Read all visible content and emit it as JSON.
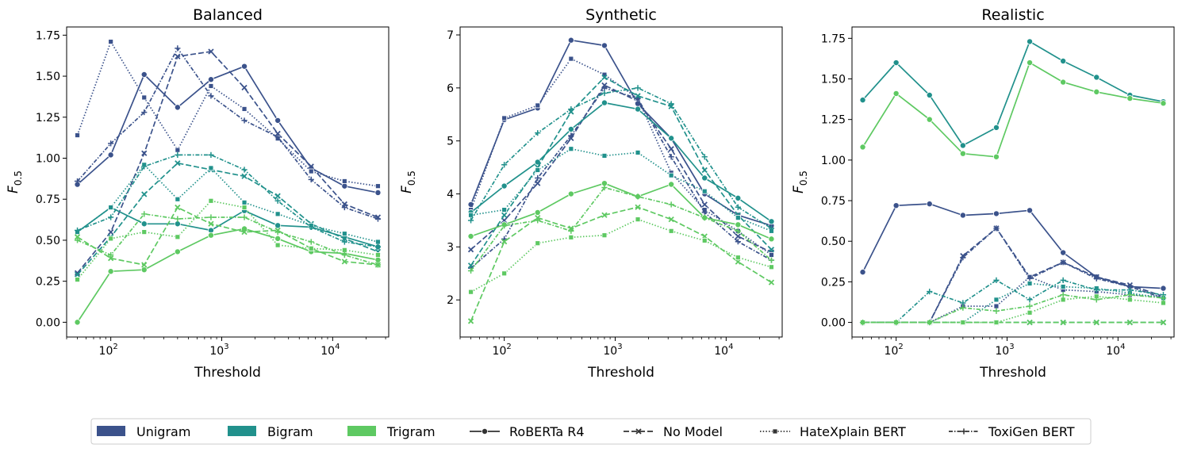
{
  "colors": {
    "Unigram": "#3b528b",
    "Bigram": "#21918c",
    "Trigram": "#5ec962"
  },
  "legend": {
    "ngrams": [
      "Unigram",
      "Bigram",
      "Trigram"
    ],
    "models": [
      "RoBERTa R4",
      "No Model",
      "HateXplain BERT",
      "ToxiGen BERT"
    ]
  },
  "chart_data": [
    {
      "type": "line",
      "title": "Balanced",
      "xlabel": "Threshold",
      "ylabel": "F",
      "ylabel_sub": "0.5",
      "xscale": "log",
      "xlim": [
        40,
        32000
      ],
      "ylim": [
        -0.09,
        1.8
      ],
      "yticks": [
        0.0,
        0.25,
        0.5,
        0.75,
        1.0,
        1.25,
        1.5,
        1.75
      ],
      "ytick_labels": [
        "0.00",
        "0.25",
        "0.50",
        "0.75",
        "1.00",
        "1.25",
        "1.50",
        "1.75"
      ],
      "x": [
        50,
        100,
        200,
        400,
        800,
        1600,
        3200,
        6400,
        12800,
        25600
      ],
      "series": [
        {
          "ngram": "Unigram",
          "model": "RoBERTa R4",
          "values": [
            0.84,
            1.02,
            1.51,
            1.31,
            1.48,
            1.56,
            1.23,
            0.94,
            0.83,
            0.79
          ]
        },
        {
          "ngram": "Unigram",
          "model": "No Model",
          "values": [
            0.3,
            0.55,
            1.03,
            1.62,
            1.65,
            1.43,
            1.15,
            0.95,
            0.72,
            0.64
          ]
        },
        {
          "ngram": "Unigram",
          "model": "HateXplain BERT",
          "values": [
            1.14,
            1.71,
            1.37,
            1.05,
            1.44,
            1.3,
            1.12,
            0.92,
            0.86,
            0.83
          ]
        },
        {
          "ngram": "Unigram",
          "model": "ToxiGen BERT",
          "values": [
            0.86,
            1.09,
            1.28,
            1.67,
            1.38,
            1.23,
            1.13,
            0.87,
            0.7,
            0.63
          ]
        },
        {
          "ngram": "Bigram",
          "model": "RoBERTa R4",
          "values": [
            0.55,
            0.7,
            0.6,
            0.6,
            0.56,
            0.68,
            0.59,
            0.58,
            0.52,
            0.46
          ]
        },
        {
          "ngram": "Bigram",
          "model": "No Model",
          "values": [
            0.29,
            0.52,
            0.78,
            0.97,
            0.93,
            0.89,
            0.77,
            0.6,
            0.51,
            0.43
          ]
        },
        {
          "ngram": "Bigram",
          "model": "HateXplain BERT",
          "values": [
            0.55,
            0.7,
            0.96,
            0.75,
            0.94,
            0.73,
            0.66,
            0.59,
            0.54,
            0.49
          ]
        },
        {
          "ngram": "Bigram",
          "model": "ToxiGen BERT",
          "values": [
            0.56,
            0.64,
            0.95,
            1.02,
            1.02,
            0.93,
            0.74,
            0.58,
            0.49,
            0.46
          ]
        },
        {
          "ngram": "Trigram",
          "model": "RoBERTa R4",
          "values": [
            0.0,
            0.31,
            0.32,
            0.43,
            0.53,
            0.57,
            0.51,
            0.43,
            0.42,
            0.38
          ]
        },
        {
          "ngram": "Trigram",
          "model": "No Model",
          "values": [
            0.52,
            0.39,
            0.35,
            0.7,
            0.6,
            0.55,
            0.56,
            0.45,
            0.37,
            0.35
          ]
        },
        {
          "ngram": "Trigram",
          "model": "HateXplain BERT",
          "values": [
            0.26,
            0.51,
            0.55,
            0.52,
            0.74,
            0.7,
            0.47,
            0.45,
            0.44,
            0.41
          ]
        },
        {
          "ngram": "Trigram",
          "model": "ToxiGen BERT",
          "values": [
            0.5,
            0.41,
            0.66,
            0.63,
            0.64,
            0.64,
            0.55,
            0.49,
            0.41,
            0.35
          ]
        }
      ]
    },
    {
      "type": "line",
      "title": "Synthetic",
      "xlabel": "Threshold",
      "ylabel": "F",
      "ylabel_sub": "0.5",
      "xscale": "log",
      "xlim": [
        40,
        32000
      ],
      "ylim": [
        1.3,
        7.15
      ],
      "yticks": [
        2,
        3,
        4,
        5,
        6,
        7
      ],
      "ytick_labels": [
        "2",
        "3",
        "4",
        "5",
        "6",
        "7"
      ],
      "x": [
        50,
        100,
        200,
        400,
        800,
        1600,
        3200,
        6400,
        12800,
        25600
      ],
      "series": [
        {
          "ngram": "Unigram",
          "model": "RoBERTa R4",
          "values": [
            3.8,
            5.4,
            5.62,
            6.9,
            6.8,
            5.7,
            5.05,
            4.0,
            3.6,
            3.4
          ]
        },
        {
          "ngram": "Unigram",
          "model": "No Model",
          "values": [
            2.95,
            3.5,
            4.2,
            5.05,
            6.05,
            5.75,
            4.85,
            3.8,
            3.2,
            2.9
          ]
        },
        {
          "ngram": "Unigram",
          "model": "HateXplain BERT",
          "values": [
            3.7,
            5.43,
            5.67,
            6.55,
            6.25,
            5.8,
            4.4,
            3.7,
            3.3,
            2.85
          ]
        },
        {
          "ngram": "Unigram",
          "model": "ToxiGen BERT",
          "values": [
            2.6,
            3.15,
            4.3,
            5.1,
            6.0,
            5.8,
            4.7,
            3.65,
            3.1,
            2.75
          ]
        },
        {
          "ngram": "Bigram",
          "model": "RoBERTa R4",
          "values": [
            3.65,
            4.15,
            4.6,
            5.22,
            5.72,
            5.6,
            5.05,
            4.3,
            3.92,
            3.48
          ]
        },
        {
          "ngram": "Bigram",
          "model": "No Model",
          "values": [
            2.65,
            3.6,
            4.5,
            5.55,
            6.2,
            5.85,
            5.65,
            4.45,
            3.6,
            2.95
          ]
        },
        {
          "ngram": "Bigram",
          "model": "HateXplain BERT",
          "values": [
            3.6,
            3.7,
            4.45,
            4.85,
            4.72,
            4.78,
            4.35,
            4.05,
            3.55,
            3.3
          ]
        },
        {
          "ngram": "Bigram",
          "model": "ToxiGen BERT",
          "values": [
            3.5,
            4.55,
            5.15,
            5.6,
            5.9,
            6.0,
            5.7,
            4.7,
            3.75,
            3.35
          ]
        },
        {
          "ngram": "Trigram",
          "model": "RoBERTa R4",
          "values": [
            3.2,
            3.42,
            3.65,
            4.0,
            4.2,
            3.95,
            4.18,
            3.55,
            3.42,
            3.15
          ]
        },
        {
          "ngram": "Trigram",
          "model": "No Model",
          "values": [
            1.6,
            3.1,
            3.55,
            3.35,
            3.6,
            3.75,
            3.52,
            3.2,
            2.72,
            2.33
          ]
        },
        {
          "ngram": "Trigram",
          "model": "HateXplain BERT",
          "values": [
            2.15,
            2.5,
            3.07,
            3.18,
            3.22,
            3.52,
            3.3,
            3.12,
            2.8,
            2.62
          ]
        },
        {
          "ngram": "Trigram",
          "model": "ToxiGen BERT",
          "values": [
            2.55,
            3.4,
            3.5,
            3.3,
            4.12,
            3.95,
            3.8,
            3.55,
            3.3,
            2.75
          ]
        }
      ]
    },
    {
      "type": "line",
      "title": "Realistic",
      "xlabel": "Threshold",
      "ylabel": "F",
      "ylabel_sub": "0.5",
      "xscale": "log",
      "xlim": [
        40,
        32000
      ],
      "ylim": [
        -0.09,
        1.82
      ],
      "yticks": [
        0.0,
        0.25,
        0.5,
        0.75,
        1.0,
        1.25,
        1.5,
        1.75
      ],
      "ytick_labels": [
        "0.00",
        "0.25",
        "0.50",
        "0.75",
        "1.00",
        "1.25",
        "1.50",
        "1.75"
      ],
      "x": [
        50,
        100,
        200,
        400,
        800,
        1600,
        3200,
        6400,
        12800,
        25600
      ],
      "series": [
        {
          "ngram": "Unigram",
          "model": "RoBERTa R4",
          "values": [
            0.31,
            0.72,
            0.73,
            0.66,
            0.67,
            0.69,
            0.43,
            0.28,
            0.22,
            0.21
          ]
        },
        {
          "ngram": "Unigram",
          "model": "No Model",
          "values": [
            0.0,
            0.0,
            0.0,
            0.41,
            0.58,
            0.28,
            0.37,
            0.28,
            0.23,
            0.16
          ]
        },
        {
          "ngram": "Unigram",
          "model": "HateXplain BERT",
          "values": [
            0.0,
            0.0,
            0.0,
            0.1,
            0.1,
            0.28,
            0.2,
            0.19,
            0.17,
            0.16
          ]
        },
        {
          "ngram": "Unigram",
          "model": "ToxiGen BERT",
          "values": [
            0.0,
            0.0,
            0.0,
            0.4,
            0.58,
            0.27,
            0.37,
            0.27,
            0.22,
            0.15
          ]
        },
        {
          "ngram": "Bigram",
          "model": "RoBERTa R4",
          "values": [
            1.37,
            1.6,
            1.4,
            1.09,
            1.2,
            1.73,
            1.61,
            1.51,
            1.4,
            1.36
          ]
        },
        {
          "ngram": "Bigram",
          "model": "No Model",
          "values": [
            0.0,
            0.0,
            0.0,
            0.0,
            0.0,
            0.0,
            0.0,
            0.0,
            0.0,
            0.0
          ]
        },
        {
          "ngram": "Bigram",
          "model": "HateXplain BERT",
          "values": [
            0.0,
            0.0,
            0.0,
            0.0,
            0.14,
            0.24,
            0.22,
            0.21,
            0.18,
            0.15
          ]
        },
        {
          "ngram": "Bigram",
          "model": "ToxiGen BERT",
          "values": [
            0.0,
            0.0,
            0.19,
            0.12,
            0.26,
            0.14,
            0.26,
            0.2,
            0.2,
            0.17
          ]
        },
        {
          "ngram": "Trigram",
          "model": "RoBERTa R4",
          "values": [
            1.08,
            1.41,
            1.25,
            1.04,
            1.02,
            1.6,
            1.48,
            1.42,
            1.38,
            1.35
          ]
        },
        {
          "ngram": "Trigram",
          "model": "No Model",
          "values": [
            0.0,
            0.0,
            0.0,
            0.0,
            0.0,
            0.0,
            0.0,
            0.0,
            0.0,
            0.0
          ]
        },
        {
          "ngram": "Trigram",
          "model": "HateXplain BERT",
          "values": [
            0.0,
            0.0,
            0.0,
            0.0,
            0.0,
            0.06,
            0.14,
            0.16,
            0.14,
            0.12
          ]
        },
        {
          "ngram": "Trigram",
          "model": "ToxiGen BERT",
          "values": [
            0.0,
            0.0,
            0.0,
            0.09,
            0.07,
            0.1,
            0.17,
            0.14,
            0.17,
            0.15
          ]
        }
      ]
    }
  ]
}
